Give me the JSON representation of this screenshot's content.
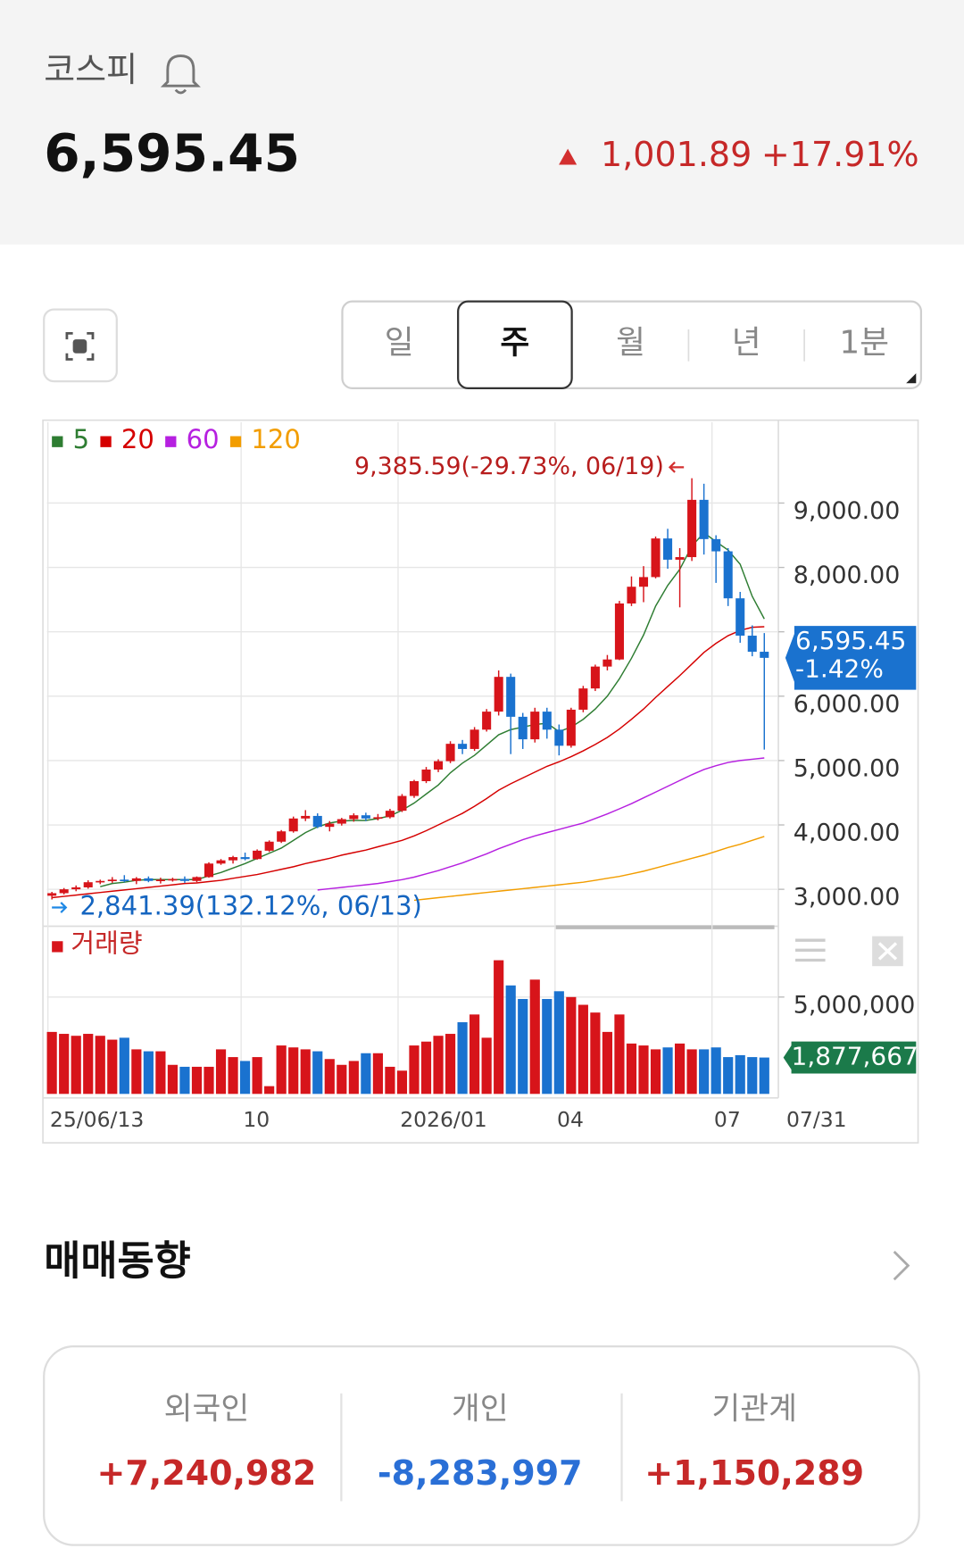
{
  "header": {
    "title": "코스피",
    "price": "6,595.45",
    "change": "1,001.89",
    "change_pct": "+17.91%"
  },
  "tabs": {
    "items": [
      "일",
      "주",
      "월",
      "년",
      "1분"
    ],
    "selected": 1
  },
  "chart_data": [
    {
      "type": "candlestick",
      "open": [
        2900,
        2940,
        3000,
        3030,
        3110,
        3130,
        3150,
        3130,
        3170,
        3130,
        3150,
        3160,
        3130,
        3190,
        3400,
        3450,
        3500,
        3470,
        3600,
        3740,
        3900,
        4100,
        4140,
        3970,
        4020,
        4090,
        4150,
        4100,
        4120,
        4220,
        4450,
        4680,
        4860,
        4990,
        5260,
        5180,
        5480,
        5760,
        6300,
        5680,
        5330,
        5760,
        5480,
        5230,
        5790,
        6120,
        6460,
        6570,
        7440,
        7700,
        7850,
        8450,
        8120,
        8160,
        9050,
        8440,
        8250,
        7520,
        6940,
        6690
      ],
      "high": [
        2960,
        3020,
        3060,
        3140,
        3150,
        3190,
        3220,
        3190,
        3200,
        3180,
        3180,
        3200,
        3200,
        3420,
        3470,
        3520,
        3570,
        3620,
        3760,
        3920,
        4130,
        4230,
        4180,
        4060,
        4110,
        4180,
        4190,
        4170,
        4250,
        4480,
        4700,
        4900,
        5020,
        5300,
        5320,
        5520,
        5800,
        6400,
        6350,
        5740,
        5820,
        5820,
        5560,
        5820,
        6160,
        6490,
        6640,
        7480,
        7860,
        8020,
        8480,
        8600,
        8300,
        9385.59,
        9300,
        8500,
        8300,
        7620,
        7100,
        6980
      ],
      "low": [
        2841.39,
        2920,
        2970,
        3010,
        3080,
        3100,
        3110,
        3080,
        3110,
        3090,
        3120,
        3100,
        3110,
        3180,
        3380,
        3400,
        3450,
        3460,
        3580,
        3720,
        3880,
        4060,
        3950,
        3900,
        3990,
        4050,
        4060,
        4070,
        4100,
        4200,
        4420,
        4650,
        4820,
        4960,
        5100,
        5150,
        5450,
        5700,
        5100,
        5180,
        5280,
        5340,
        5080,
        5200,
        5750,
        6080,
        6400,
        6560,
        7400,
        7460,
        7830,
        7980,
        7380,
        8100,
        8200,
        7760,
        7400,
        6830,
        6620,
        5170
      ],
      "close": [
        2940,
        3000,
        3030,
        3110,
        3130,
        3150,
        3130,
        3170,
        3130,
        3150,
        3160,
        3130,
        3190,
        3400,
        3450,
        3500,
        3470,
        3600,
        3740,
        3900,
        4100,
        4140,
        3970,
        4020,
        4090,
        4150,
        4100,
        4120,
        4220,
        4450,
        4680,
        4860,
        4990,
        5260,
        5180,
        5480,
        5760,
        6300,
        5680,
        5330,
        5760,
        5480,
        5230,
        5790,
        6120,
        6460,
        6570,
        7440,
        7700,
        7850,
        8450,
        8120,
        8160,
        9050,
        8440,
        8250,
        7520,
        6940,
        6690,
        6595.45
      ],
      "up_color": "#d7141a",
      "down_color": "#1a72cf",
      "series": [
        {
          "name": "5",
          "color": "#2e7d32",
          "values": [
            null,
            null,
            null,
            null,
            3040,
            3090,
            3110,
            3140,
            3150,
            3150,
            3150,
            3150,
            3150,
            3210,
            3260,
            3330,
            3400,
            3480,
            3560,
            3640,
            3760,
            3880,
            3970,
            4030,
            4060,
            4070,
            4070,
            4100,
            4140,
            4230,
            4340,
            4480,
            4620,
            4810,
            4960,
            5080,
            5240,
            5400,
            5480,
            5520,
            5560,
            5580,
            5450,
            5520,
            5640,
            5800,
            6000,
            6270,
            6590,
            6950,
            7400,
            7720,
            7970,
            8330,
            8540,
            8400,
            8270,
            8050,
            7550,
            7200
          ]
        },
        {
          "name": "20",
          "color": "#d50000",
          "values": [
            2870,
            2890,
            2910,
            2930,
            2950,
            2970,
            2990,
            3010,
            3030,
            3050,
            3070,
            3090,
            3100,
            3120,
            3140,
            3170,
            3200,
            3230,
            3270,
            3310,
            3350,
            3400,
            3440,
            3480,
            3530,
            3570,
            3610,
            3660,
            3710,
            3760,
            3830,
            3910,
            4000,
            4090,
            4180,
            4290,
            4410,
            4540,
            4640,
            4730,
            4820,
            4910,
            4980,
            5060,
            5150,
            5250,
            5360,
            5490,
            5640,
            5800,
            5980,
            6150,
            6320,
            6500,
            6680,
            6820,
            6940,
            7020,
            7070,
            7080
          ]
        },
        {
          "name": "60",
          "color": "#b620e0",
          "values": [
            null,
            null,
            null,
            null,
            null,
            null,
            null,
            null,
            null,
            null,
            null,
            null,
            null,
            null,
            null,
            null,
            null,
            null,
            null,
            null,
            null,
            null,
            2990,
            3010,
            3030,
            3050,
            3070,
            3090,
            3120,
            3150,
            3190,
            3240,
            3290,
            3350,
            3410,
            3480,
            3550,
            3630,
            3700,
            3770,
            3830,
            3880,
            3930,
            3980,
            4030,
            4100,
            4170,
            4250,
            4330,
            4420,
            4510,
            4600,
            4690,
            4780,
            4860,
            4920,
            4970,
            5000,
            5020,
            5040
          ]
        },
        {
          "name": "120",
          "color": "#f29d00",
          "values": [
            null,
            null,
            null,
            null,
            null,
            null,
            null,
            null,
            null,
            null,
            null,
            null,
            null,
            null,
            null,
            null,
            null,
            null,
            null,
            null,
            null,
            null,
            null,
            null,
            null,
            null,
            null,
            null,
            null,
            null,
            2830,
            2850,
            2870,
            2890,
            2910,
            2930,
            2950,
            2970,
            2990,
            3010,
            3030,
            3050,
            3070,
            3090,
            3110,
            3140,
            3170,
            3200,
            3240,
            3280,
            3330,
            3380,
            3430,
            3480,
            3530,
            3590,
            3650,
            3700,
            3760,
            3820
          ]
        }
      ],
      "ylim": [
        2473,
        10256
      ],
      "yticks": [
        {
          "value": 3000,
          "label": "3,000.00"
        },
        {
          "value": 4000,
          "label": "4,000.00"
        },
        {
          "value": 5000,
          "label": "5,000.00"
        },
        {
          "value": 6000,
          "label": "6,000.00"
        },
        {
          "value": 7000,
          "label": ""
        },
        {
          "value": 8000,
          "label": "8,000.00"
        },
        {
          "value": 9000,
          "label": "9,000.00"
        }
      ],
      "high_label": "9,385.59(-29.73%, 06/19)",
      "low_label": "2,841.39(132.12%, 06/13)",
      "last_label": "6,595.45",
      "last_change": "-1.42%",
      "grid": true
    },
    {
      "type": "bar",
      "title": "거래량",
      "categories": [
        "25/06/13",
        null,
        null,
        null,
        null,
        null,
        null,
        null,
        null,
        null,
        null,
        null,
        null,
        null,
        null,
        null,
        "10",
        null,
        null,
        null,
        null,
        null,
        null,
        null,
        null,
        null,
        null,
        null,
        null,
        "2026/01",
        null,
        null,
        null,
        null,
        null,
        null,
        null,
        null,
        null,
        null,
        null,
        null,
        "04",
        null,
        null,
        null,
        null,
        null,
        null,
        null,
        null,
        null,
        null,
        null,
        null,
        "07",
        null,
        null,
        null,
        "07/31"
      ],
      "values": [
        3200000,
        3100000,
        3000000,
        3100000,
        3000000,
        2800000,
        2900000,
        2300000,
        2200000,
        2200000,
        1500000,
        1400000,
        1400000,
        1400000,
        2300000,
        1900000,
        1700000,
        1900000,
        400000,
        2500000,
        2400000,
        2300000,
        2200000,
        1800000,
        1500000,
        1700000,
        2100000,
        2100000,
        1400000,
        1200000,
        2500000,
        2700000,
        3000000,
        3100000,
        3700000,
        4100000,
        2900000,
        6900000,
        5600000,
        4900000,
        5900000,
        4900000,
        5300000,
        5000000,
        4600000,
        4200000,
        3200000,
        4100000,
        2600000,
        2500000,
        2300000,
        2400000,
        2600000,
        2300000,
        2300000,
        2400000,
        1900000,
        2000000,
        1900000,
        1877667
      ],
      "value_labels": [
        null,
        null,
        null,
        null,
        null,
        null,
        null,
        null,
        null,
        null,
        null,
        null,
        null,
        null,
        null,
        null,
        null,
        null,
        null,
        null,
        null,
        null,
        null,
        null,
        null,
        null,
        null,
        null,
        null,
        null,
        null,
        null,
        null,
        null,
        null,
        null,
        null,
        null,
        null,
        null,
        null,
        null,
        null,
        null,
        null,
        null,
        null,
        null,
        null,
        null,
        null,
        null,
        null,
        null,
        null,
        null,
        null,
        null,
        null,
        "1,877,667"
      ],
      "ylim": [
        0,
        8450000
      ],
      "yticks": [
        {
          "value": 5000000,
          "label": "5,000,000"
        }
      ],
      "grid": true
    }
  ],
  "trading": {
    "title": "매매동향",
    "items": [
      {
        "label": "외국인",
        "value": "+7,240,982"
      },
      {
        "label": "개인",
        "value": "-8,283,997"
      },
      {
        "label": "기관계",
        "value": "+1,150,289"
      }
    ]
  }
}
